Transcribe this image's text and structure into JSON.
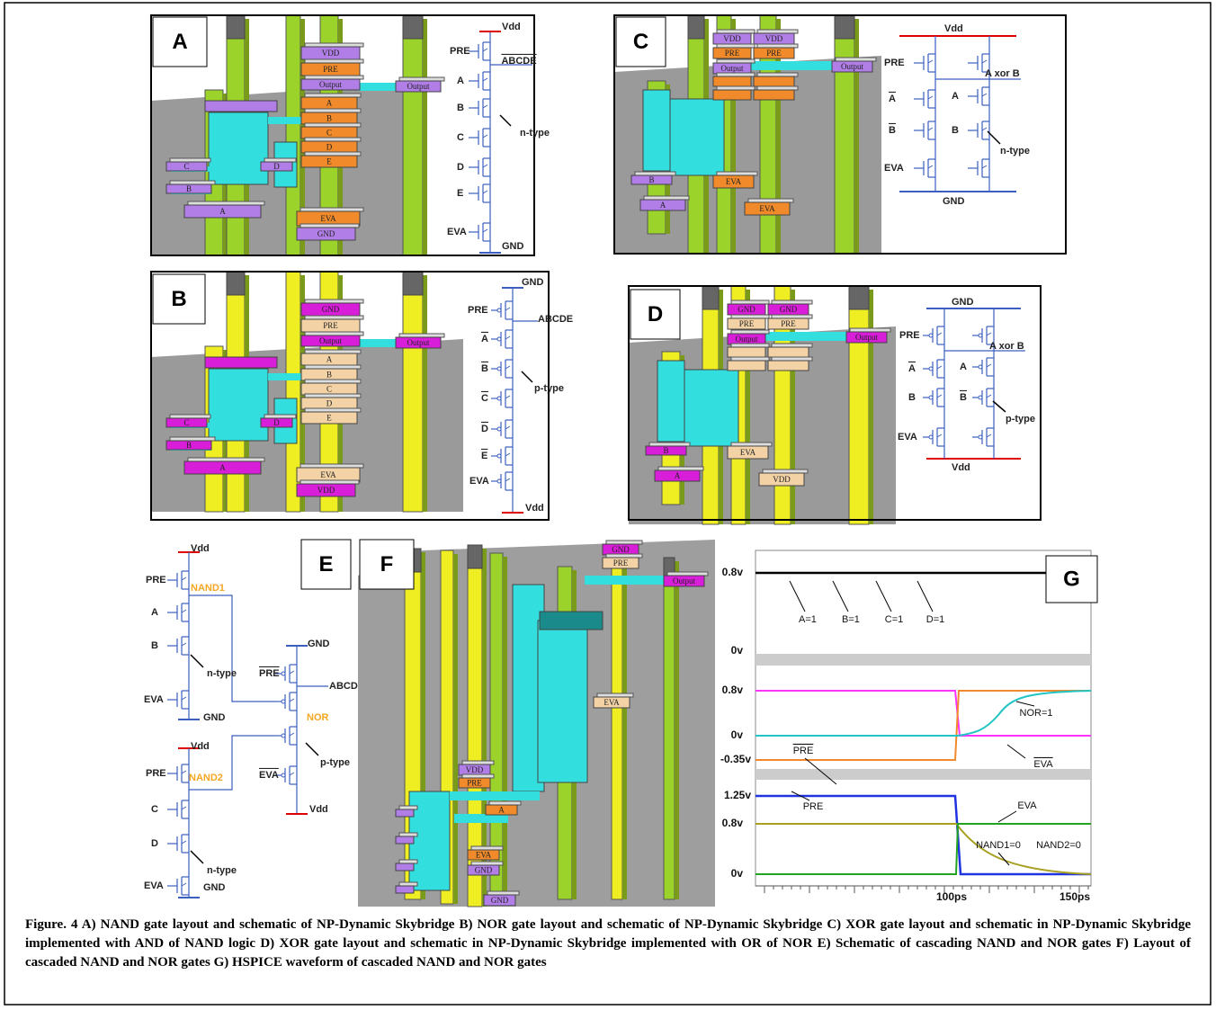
{
  "panel_a": {
    "label": "A",
    "layout": [
      "VDD",
      "PRE",
      "Output",
      "Output",
      "A",
      "B",
      "C",
      "D",
      "E",
      "EVA",
      "GND",
      "C",
      "D",
      "B",
      "A"
    ],
    "schematic": [
      "Vdd",
      "PRE",
      "ABCDE",
      "A",
      "B",
      "n-type",
      "C",
      "D",
      "E",
      "EVA",
      "GND"
    ]
  },
  "panel_b": {
    "label": "B",
    "layout": [
      "GND",
      "PRE",
      "Output",
      "Output",
      "A",
      "B",
      "C",
      "D",
      "E",
      "EVA",
      "VDD",
      "C",
      "D",
      "B",
      "A"
    ],
    "schematic": [
      "GND",
      "PRE",
      "ABCDE",
      "A",
      "B",
      "p-type",
      "C",
      "D",
      "E",
      "EVA",
      "Vdd"
    ]
  },
  "panel_c": {
    "label": "C",
    "layout": [
      "VDD",
      "VDD",
      "PRE",
      "PRE",
      "Output",
      "Output",
      "EVA",
      "EVA",
      "B",
      "A"
    ],
    "schematic": [
      "Vdd",
      "PRE",
      "A xor B",
      "A",
      "A",
      "B",
      "B",
      "n-type",
      "EVA",
      "GND"
    ]
  },
  "panel_d": {
    "label": "D",
    "layout": [
      "GND",
      "GND",
      "PRE",
      "PRE",
      "Output",
      "Output",
      "EVA",
      "VDD",
      "B",
      "A"
    ],
    "schematic": [
      "GND",
      "PRE",
      "A xor B",
      "A",
      "A",
      "B",
      "B",
      "p-type",
      "EVA",
      "Vdd"
    ]
  },
  "panel_e": {
    "label": "E",
    "schematic": [
      "Vdd",
      "PRE",
      "NAND1",
      "A",
      "B",
      "n-type",
      "EVA",
      "GND",
      "Vdd",
      "PRE",
      "NAND2",
      "C",
      "D",
      "n-type",
      "EVA",
      "GND",
      "GND",
      "PRE",
      "ABCD",
      "NOR",
      "p-type",
      "EVA",
      "Vdd"
    ]
  },
  "panel_f": {
    "label": "F",
    "layout": [
      "GND",
      "PRE",
      "Output",
      "EVA",
      "GND",
      "VDD",
      "PRE",
      "A",
      "EVA",
      "GND"
    ]
  },
  "panel_g": {
    "label": "G",
    "y_labels": [
      "0.8v",
      "0v",
      "0.8v",
      "0v",
      "-0.35v",
      "1.25v",
      "0.8v",
      "0v"
    ],
    "x_labels": [
      "100ps",
      "150ps"
    ],
    "annotations": [
      "A=1",
      "B=1",
      "C=1",
      "D=1",
      "PRE",
      "NOR=1",
      "EVA",
      "EVA",
      "PRE",
      "NAND1=0",
      "NAND2=0"
    ]
  },
  "caption": "Figure. 4 A) NAND gate layout and schematic of NP-Dynamic Skybridge B) NOR gate layout and schematic of NP-Dynamic Skybridge C) XOR gate layout and schematic in NP-Dynamic Skybridge implemented with AND of NAND logic D) XOR gate layout and schematic in NP-Dynamic Skybridge implemented with OR of NOR E) Schematic of cascading NAND and NOR gates F) Layout of cascaded NAND and NOR gates G) HSPICE waveform of cascaded NAND and NOR gates"
}
